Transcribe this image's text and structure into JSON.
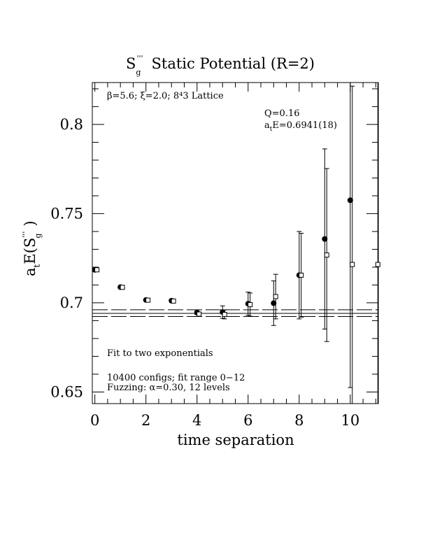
{
  "chart_data": {
    "type": "scatter",
    "title_main": "S",
    "title_sub": "g",
    "title_sup": "'''",
    "title_rest": "Static Potential (R=2)",
    "xlabel": "time separation",
    "ylabel_a": "a",
    "ylabel_t": "t",
    "ylabel_e": "E(S",
    "ylabel_sup": "'''",
    "ylabel_sub": "g",
    "ylabel_close": ")",
    "xlim": [
      -0.1,
      11.1
    ],
    "ylim": [
      0.6435,
      0.8235
    ],
    "x_ticks": [
      0,
      2,
      4,
      6,
      8,
      10
    ],
    "x_tick_labels": [
      "0",
      "2",
      "4",
      "6",
      "8",
      "10"
    ],
    "y_ticks": [
      0.65,
      0.7,
      0.75,
      0.8
    ],
    "y_tick_labels": [
      "0.65",
      "0.7",
      "0.75",
      "0.8"
    ],
    "annotations": {
      "lattice": "β=5.6; ξ=2.0; 8⁴3 Lattice",
      "q_value": "Q=0.16",
      "energy_a": "a",
      "energy_t": "t",
      "energy_rest": "E=0.6941(18)",
      "fit_type": "Fit to two exponentials",
      "configs": "10400 configs; fit range 0−12",
      "fuzzing": "Fuzzing: α=0.30, 12 levels"
    },
    "fit": {
      "value": 0.6941,
      "upper": 0.6961,
      "lower": 0.6923
    },
    "series": [
      {
        "marker": "filled-circle",
        "points": [
          {
            "x": 0,
            "y": 0.7185,
            "err": 0.0
          },
          {
            "x": 1,
            "y": 0.7088,
            "err": 0.0
          },
          {
            "x": 2,
            "y": 0.7016,
            "err": 0.0
          },
          {
            "x": 3,
            "y": 0.7012,
            "err": 0.0
          },
          {
            "x": 4,
            "y": 0.6945,
            "err": 0.001
          },
          {
            "x": 5,
            "y": 0.6948,
            "err": 0.0035
          },
          {
            "x": 6,
            "y": 0.6995,
            "err": 0.0065
          },
          {
            "x": 7,
            "y": 0.6998,
            "err": 0.0125
          },
          {
            "x": 8,
            "y": 0.7155,
            "err": 0.0245
          },
          {
            "x": 9,
            "y": 0.7358,
            "err": 0.0505
          },
          {
            "x": 10,
            "y": 0.7575,
            "err": 0.105
          }
        ]
      },
      {
        "marker": "open-square",
        "points": [
          {
            "x": 0.08,
            "y": 0.7185,
            "err": 0.0
          },
          {
            "x": 1.08,
            "y": 0.7087,
            "err": 0.0
          },
          {
            "x": 2.08,
            "y": 0.7015,
            "err": 0.0
          },
          {
            "x": 3.08,
            "y": 0.701,
            "err": 0.0
          },
          {
            "x": 4.08,
            "y": 0.6937,
            "err": 0.001
          },
          {
            "x": 5.08,
            "y": 0.6935,
            "err": 0.0025
          },
          {
            "x": 6.08,
            "y": 0.699,
            "err": 0.0065
          },
          {
            "x": 7.08,
            "y": 0.7035,
            "err": 0.0125
          },
          {
            "x": 8.08,
            "y": 0.7155,
            "err": 0.0235
          },
          {
            "x": 9.08,
            "y": 0.7268,
            "err": 0.0485
          },
          {
            "x": 10.08,
            "y": 0.7215,
            "err": 0.1
          },
          {
            "x": 11.08,
            "y": 0.7215,
            "err": 0.11
          }
        ]
      }
    ]
  }
}
